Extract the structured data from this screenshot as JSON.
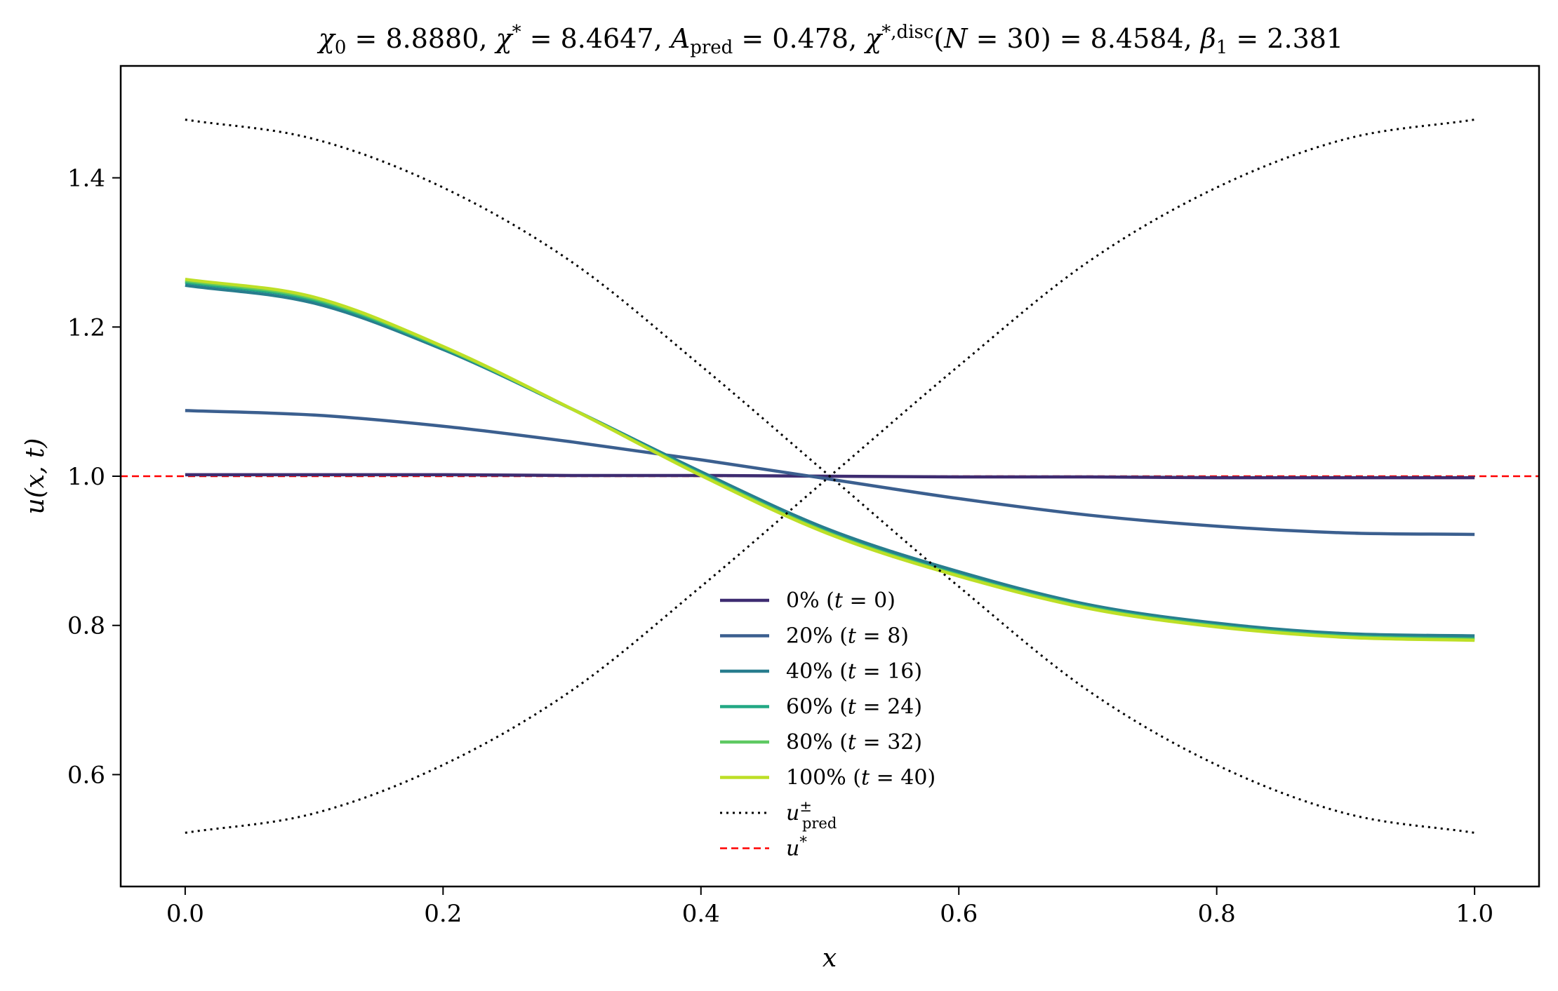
{
  "chart_data": {
    "type": "line",
    "title": "χ₀ = 8.8880,  χ* = 8.4647,  A_pred = 0.478,  χ*,disc(N = 30) = 8.4584,  β₁ = 2.381",
    "xlabel": "x",
    "ylabel": "u(x, t)",
    "xlim": [
      -0.05,
      1.05
    ],
    "ylim": [
      0.45,
      1.55
    ],
    "x_ticks": [
      "0.0",
      "0.2",
      "0.4",
      "0.6",
      "0.8",
      "1.0"
    ],
    "x_tick_values": [
      0.0,
      0.2,
      0.4,
      0.6,
      0.8,
      1.0
    ],
    "y_ticks": [
      "0.6",
      "0.8",
      "1.0",
      "1.2",
      "1.4"
    ],
    "y_tick_values": [
      0.6,
      0.8,
      1.0,
      1.2,
      1.4
    ],
    "grid": false,
    "legend_position": "lower center",
    "x": [
      0.0,
      0.1,
      0.2,
      0.3,
      0.4,
      0.5,
      0.6,
      0.7,
      0.8,
      0.9,
      1.0
    ],
    "series": [
      {
        "name": "0% (t = 0)",
        "color": "#3e2c71",
        "style": "solid",
        "values": [
          1.002,
          1.002,
          1.002,
          1.001,
          1.001,
          1.0,
          0.999,
          0.999,
          0.998,
          0.998,
          0.998
        ]
      },
      {
        "name": "20% (t = 8)",
        "color": "#3b5f8f",
        "style": "solid",
        "values": [
          1.088,
          1.082,
          1.067,
          1.046,
          1.022,
          0.996,
          0.97,
          0.948,
          0.933,
          0.924,
          0.922
        ]
      },
      {
        "name": "40% (t = 16)",
        "color": "#287d8e",
        "style": "solid",
        "values": [
          1.256,
          1.232,
          1.17,
          1.09,
          1.006,
          0.928,
          0.872,
          0.828,
          0.803,
          0.789,
          0.786
        ]
      },
      {
        "name": "60% (t = 24)",
        "color": "#22a884",
        "style": "solid",
        "values": [
          1.26,
          1.236,
          1.172,
          1.09,
          1.003,
          0.924,
          0.868,
          0.825,
          0.8,
          0.786,
          0.782
        ]
      },
      {
        "name": "80% (t = 32)",
        "color": "#5ec962",
        "style": "solid",
        "values": [
          1.262,
          1.238,
          1.173,
          1.09,
          1.002,
          0.923,
          0.867,
          0.824,
          0.799,
          0.785,
          0.781
        ]
      },
      {
        "name": "100% (t = 40)",
        "color": "#bddf26",
        "style": "solid",
        "values": [
          1.264,
          1.24,
          1.174,
          1.09,
          1.001,
          0.922,
          0.866,
          0.823,
          0.798,
          0.784,
          0.78
        ]
      }
    ],
    "u_pred": {
      "name": "u±pred",
      "color": "#000000",
      "style": "dotted",
      "A": 0.478,
      "plus_values": [
        1.478,
        1.452,
        1.387,
        1.287,
        1.148,
        1.0,
        0.852,
        0.713,
        0.613,
        0.548,
        0.522
      ],
      "minus_values": [
        0.522,
        0.548,
        0.613,
        0.713,
        0.852,
        1.0,
        1.148,
        1.287,
        1.387,
        1.452,
        1.478
      ]
    },
    "u_star": {
      "name": "u*",
      "value": 1.0,
      "color": "#ff0000",
      "style": "dashed"
    },
    "legend": [
      "0% (t = 0)",
      "20% (t = 8)",
      "40% (t = 16)",
      "60% (t = 24)",
      "80% (t = 32)",
      "100% (t = 40)",
      "u±pred",
      "u*"
    ]
  }
}
